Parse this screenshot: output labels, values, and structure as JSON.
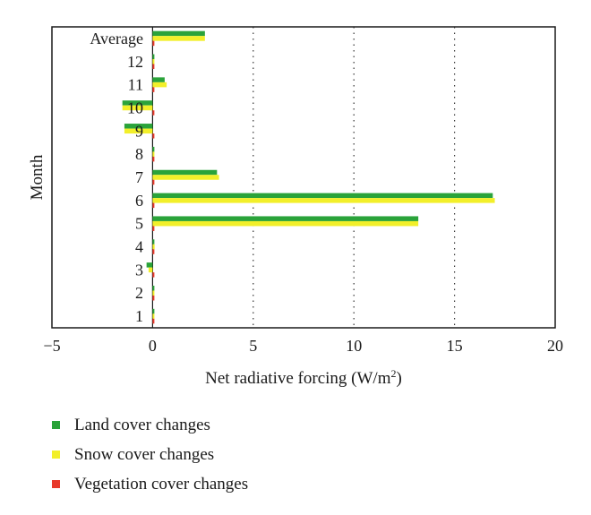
{
  "chart_data": {
    "type": "bar",
    "orientation": "horizontal",
    "xlabel": "Net radiative forcing (W/m",
    "xlabel_sup": "2",
    "xlabel_suffix": ")",
    "ylabel": "Month",
    "xlim": [
      -5,
      20
    ],
    "x_ticks": [
      -5,
      0,
      5,
      10,
      15,
      20
    ],
    "x_tick_labels": [
      "−5",
      "0",
      "5",
      "10",
      "15",
      "20"
    ],
    "grid": "vertical dotted lines at 5, 10, 15",
    "categories": [
      "1",
      "2",
      "3",
      "4",
      "5",
      "6",
      "7",
      "8",
      "9",
      "10",
      "11",
      "12",
      "Average"
    ],
    "series": [
      {
        "name": "Land cover changes",
        "color": "#2aa33a",
        "values": [
          0.05,
          0.05,
          -0.3,
          0.05,
          13.2,
          16.9,
          3.2,
          0.0,
          -1.4,
          -1.5,
          0.6,
          0.05,
          2.6
        ]
      },
      {
        "name": "Snow cover changes",
        "color": "#f2ef2a",
        "values": [
          0.05,
          0.05,
          -0.2,
          0.1,
          13.2,
          17.0,
          3.3,
          0.0,
          -1.4,
          -1.5,
          0.7,
          0.05,
          2.6
        ]
      },
      {
        "name": "Vegetation cover changes",
        "color": "#e8392b",
        "values": [
          0.05,
          0.05,
          0.05,
          0.05,
          0.05,
          0.05,
          0.05,
          0.05,
          0.05,
          0.05,
          0.05,
          0.05,
          0.05
        ]
      }
    ],
    "legend_position": "bottom-left"
  }
}
